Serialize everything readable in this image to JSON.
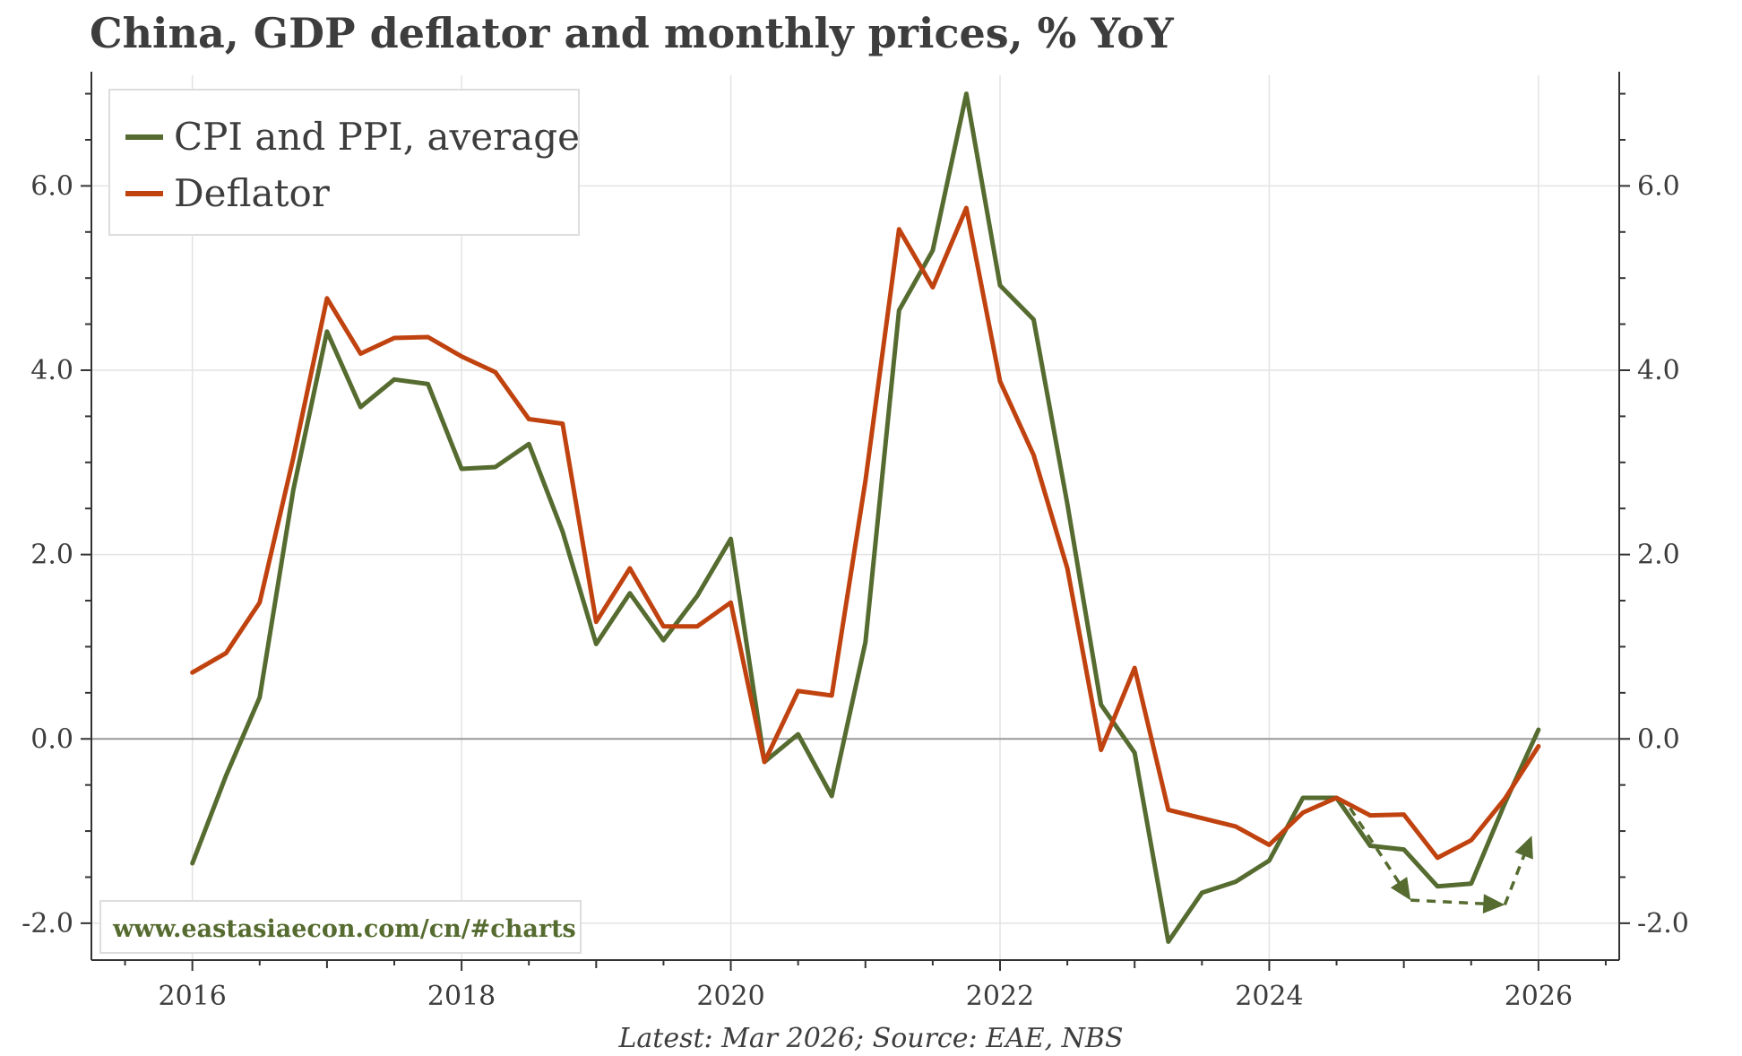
{
  "chart_data": {
    "type": "line",
    "title": "China, GDP deflator and monthly prices, % YoY",
    "source": "Latest: Mar 2026; Source: EAE, NBS",
    "watermark": "www.eastasiaecon.com/cn/#charts",
    "xlim": [
      2015.25,
      2026.6
    ],
    "ylim": [
      -2.4,
      7.2
    ],
    "x_ticks": [
      2016,
      2018,
      2020,
      2022,
      2024,
      2026
    ],
    "x_tick_labels": [
      "2016",
      "2018",
      "2020",
      "2022",
      "2024",
      "2026"
    ],
    "y_ticks": [
      -2.0,
      0.0,
      2.0,
      4.0,
      6.0
    ],
    "y_tick_labels": [
      "-2.0",
      "0.0",
      "2.0",
      "4.0",
      "6.0"
    ],
    "grid": true,
    "legend": "top-left",
    "series": [
      {
        "name": "CPI and PPI, average",
        "color": "#556b2f",
        "x": [
          2016.0,
          2016.25,
          2016.5,
          2016.75,
          2017.0,
          2017.25,
          2017.5,
          2017.75,
          2018.0,
          2018.25,
          2018.5,
          2018.75,
          2019.0,
          2019.25,
          2019.5,
          2019.75,
          2020.0,
          2020.25,
          2020.5,
          2020.75,
          2021.0,
          2021.25,
          2021.5,
          2021.75,
          2022.0,
          2022.25,
          2022.5,
          2022.75,
          2023.0,
          2023.25,
          2023.5,
          2023.75,
          2024.0,
          2024.25,
          2024.5,
          2024.75,
          2025.0,
          2025.25,
          2025.5,
          2025.75,
          2026.0
        ],
        "y": [
          -1.35,
          -0.4,
          0.45,
          2.7,
          4.42,
          3.6,
          3.9,
          3.85,
          2.93,
          2.95,
          3.2,
          2.25,
          1.03,
          1.58,
          1.07,
          1.55,
          2.17,
          -0.25,
          0.05,
          -0.62,
          1.05,
          4.65,
          5.3,
          7.0,
          4.92,
          4.55,
          2.55,
          0.37,
          -0.15,
          -2.2,
          -1.67,
          -1.55,
          -1.32,
          -0.64,
          -0.64,
          -1.16,
          -1.2,
          -1.6,
          -1.57,
          -0.7,
          0.1
        ]
      },
      {
        "name": "Deflator",
        "color": "#c0420f",
        "x": [
          2016.0,
          2016.25,
          2016.5,
          2016.75,
          2017.0,
          2017.25,
          2017.5,
          2017.75,
          2018.0,
          2018.25,
          2018.5,
          2018.75,
          2019.0,
          2019.25,
          2019.5,
          2019.75,
          2020.0,
          2020.25,
          2020.5,
          2020.75,
          2021.0,
          2021.25,
          2021.5,
          2021.75,
          2022.0,
          2022.25,
          2022.5,
          2022.75,
          2023.0,
          2023.25,
          2023.5,
          2023.75,
          2024.0,
          2024.25,
          2024.5,
          2024.75,
          2025.0,
          2025.25,
          2025.5,
          2025.75,
          2026.0
        ],
        "y": [
          0.72,
          0.93,
          1.48,
          3.05,
          4.78,
          4.18,
          4.35,
          4.36,
          4.15,
          3.98,
          3.47,
          3.42,
          1.27,
          1.85,
          1.22,
          1.22,
          1.48,
          -0.25,
          0.52,
          0.47,
          2.8,
          5.53,
          4.9,
          5.76,
          3.88,
          3.08,
          1.85,
          -0.12,
          0.77,
          -0.77,
          -0.86,
          -0.95,
          -1.15,
          -0.8,
          -0.64,
          -0.83,
          -0.82,
          -1.29,
          -1.1,
          -0.65,
          -0.08
        ]
      }
    ],
    "annotations": [
      {
        "type": "dashed-arrow-path",
        "color": "#556b2f",
        "points": [
          [
            2024.6,
            -0.75
          ],
          [
            2025.05,
            -1.75
          ],
          [
            2025.75,
            -1.8
          ],
          [
            2025.95,
            -1.05
          ]
        ],
        "arrowheads_at": [
          [
            2025.05,
            -1.75
          ],
          [
            2025.75,
            -1.8
          ],
          [
            2025.95,
            -1.05
          ]
        ]
      }
    ]
  }
}
